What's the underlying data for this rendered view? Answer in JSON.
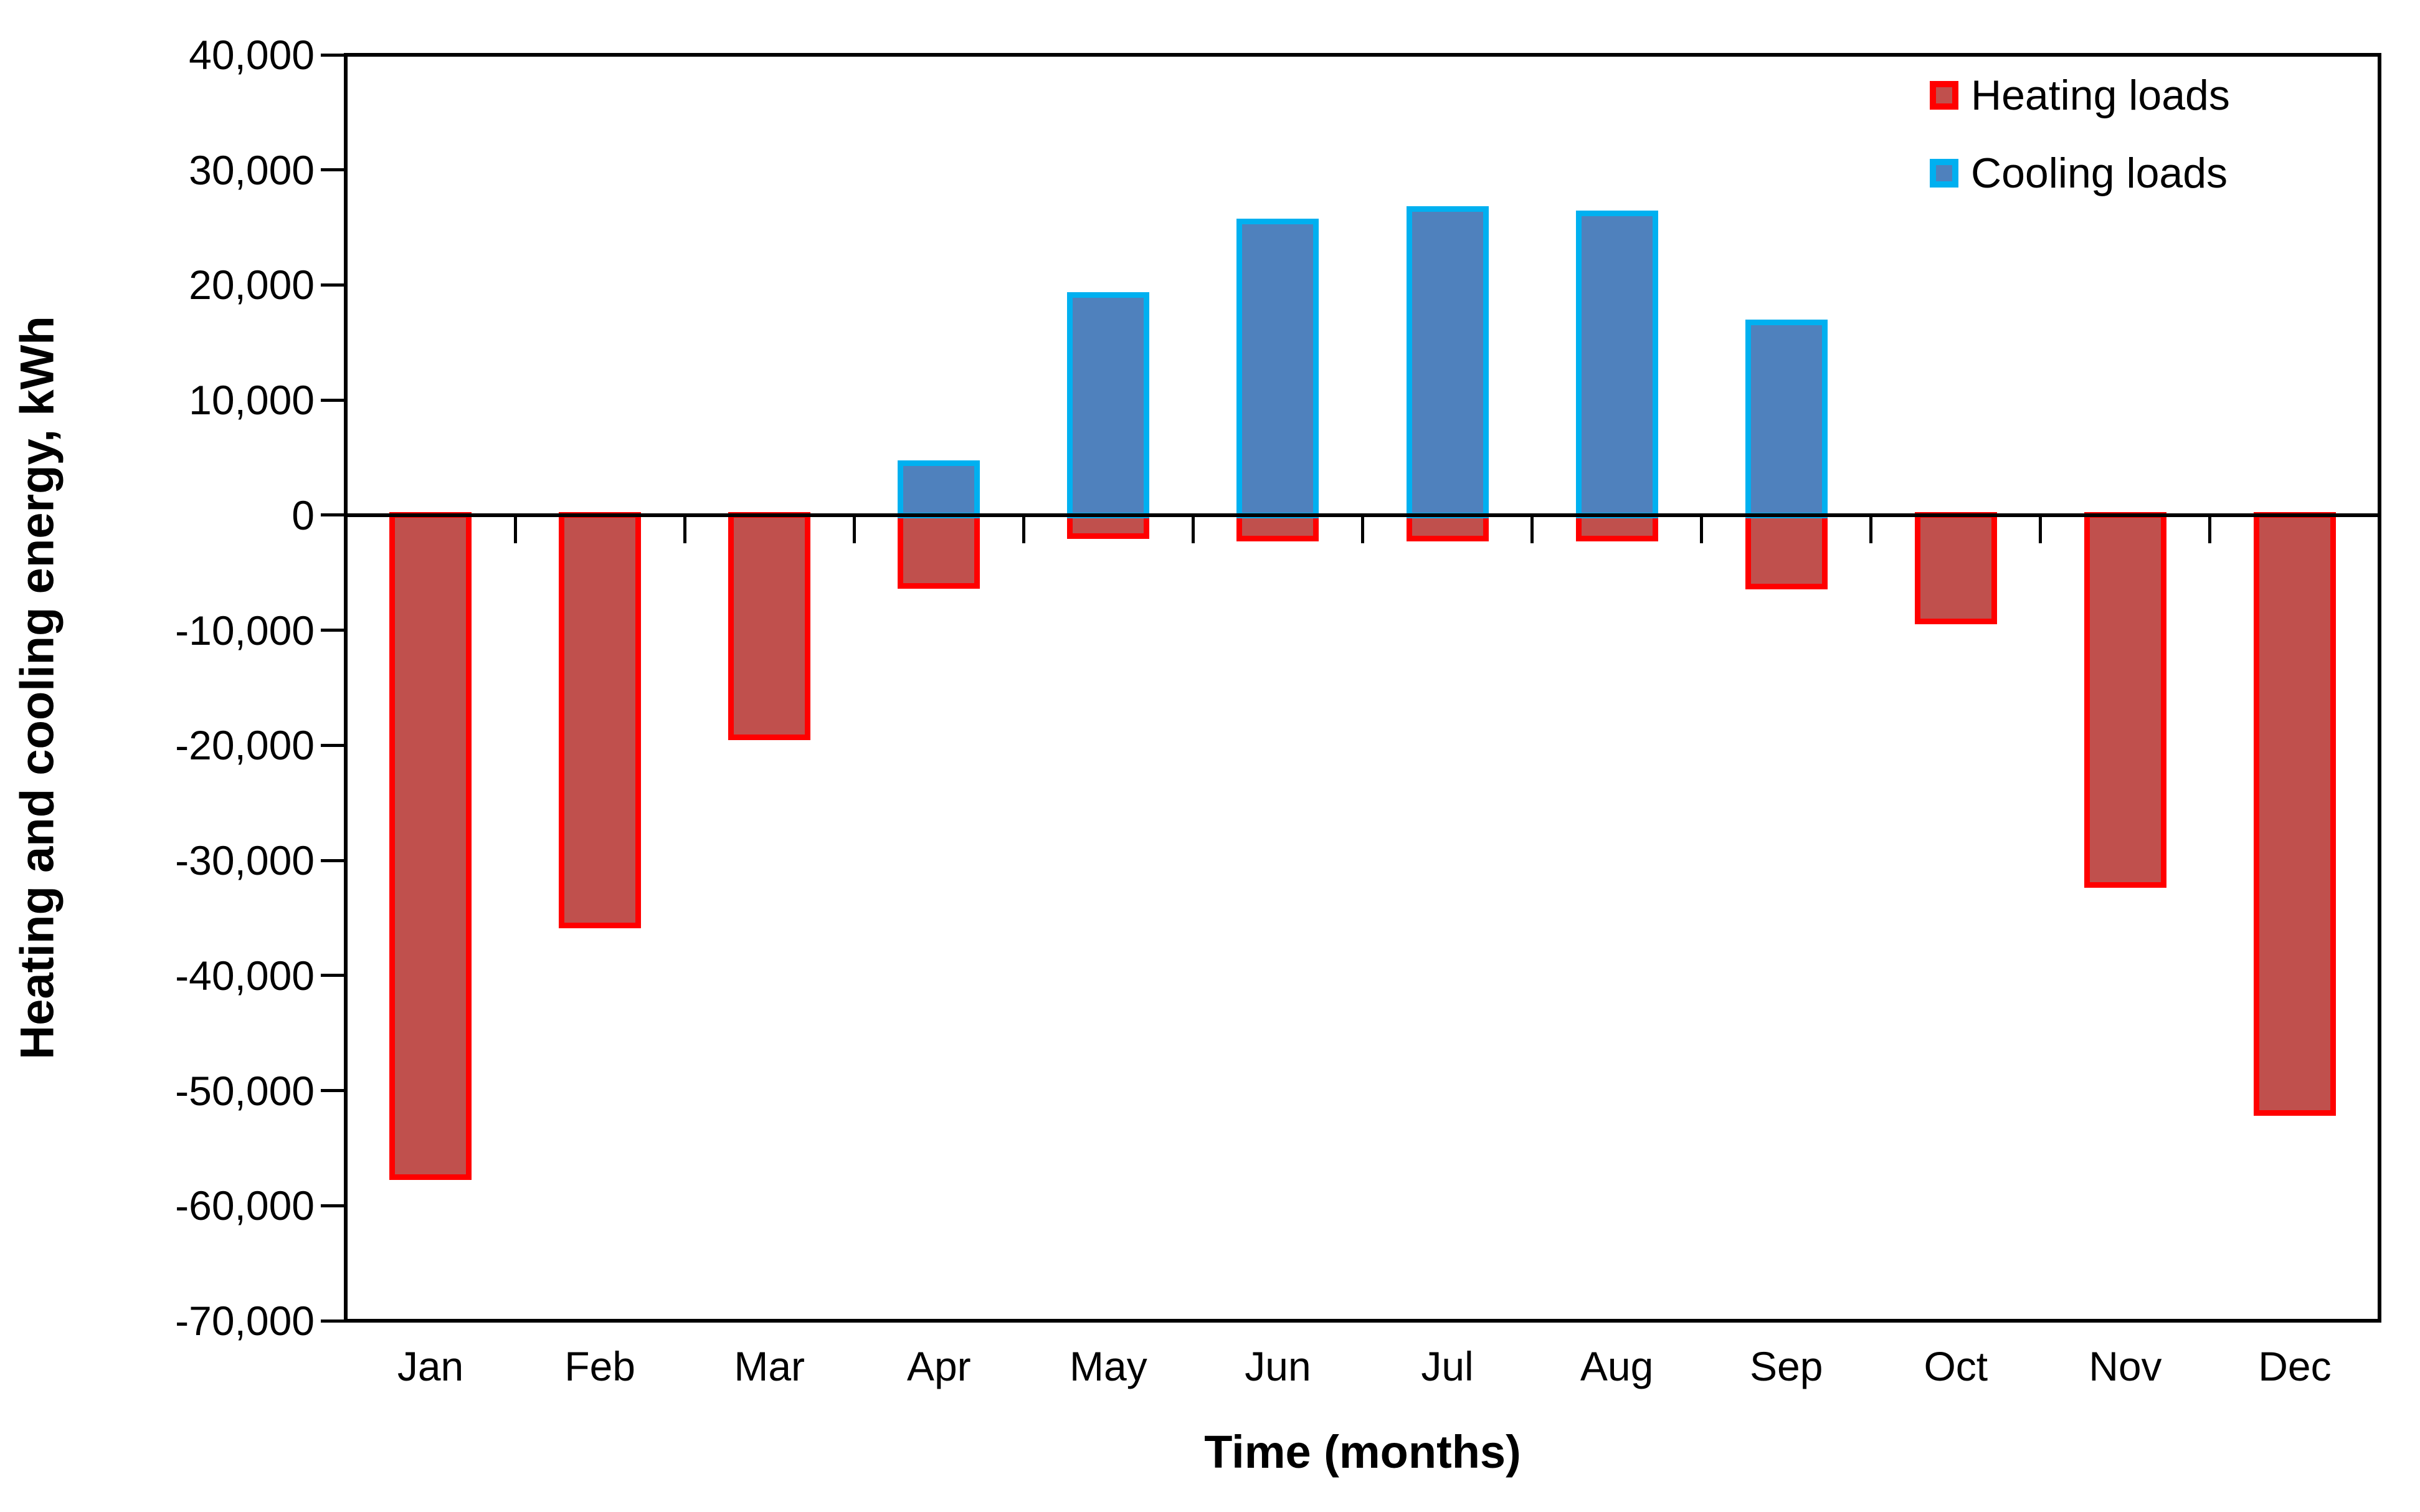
{
  "chart_data": {
    "type": "bar",
    "title": "",
    "xlabel": "Time (months)",
    "ylabel": "Heating and cooling energy, kWh",
    "categories": [
      "Jan",
      "Feb",
      "Mar",
      "Apr",
      "May",
      "Jun",
      "Jul",
      "Aug",
      "Sep",
      "Oct",
      "Nov",
      "Dec"
    ],
    "series": [
      {
        "name": "Heating loads",
        "fill_color": "#C0504D",
        "border_color": "#FF0000",
        "values": [
          -57500,
          -35600,
          -19300,
          -6100,
          -1800,
          -2000,
          -2000,
          -2000,
          -6200,
          -9200,
          -32100,
          -51900
        ]
      },
      {
        "name": "Cooling loads",
        "fill_color": "#4F81BD",
        "border_color": "#00B0F0",
        "values": [
          0,
          0,
          0,
          4500,
          19100,
          25500,
          26600,
          26200,
          16700,
          0,
          0,
          0
        ]
      }
    ],
    "ylim": [
      -70000,
      40000
    ],
    "ytick_step": 10000,
    "ytick_labels": [
      "40,000",
      "30,000",
      "20,000",
      "10,000",
      "0",
      "-10,000",
      "-20,000",
      "-30,000",
      "-40,000",
      "-50,000",
      "-60,000",
      "-70,000"
    ],
    "grid": false,
    "legend_position": "top-right-inside",
    "axis_color": "#000000",
    "background_color": "#FFFFFF"
  }
}
